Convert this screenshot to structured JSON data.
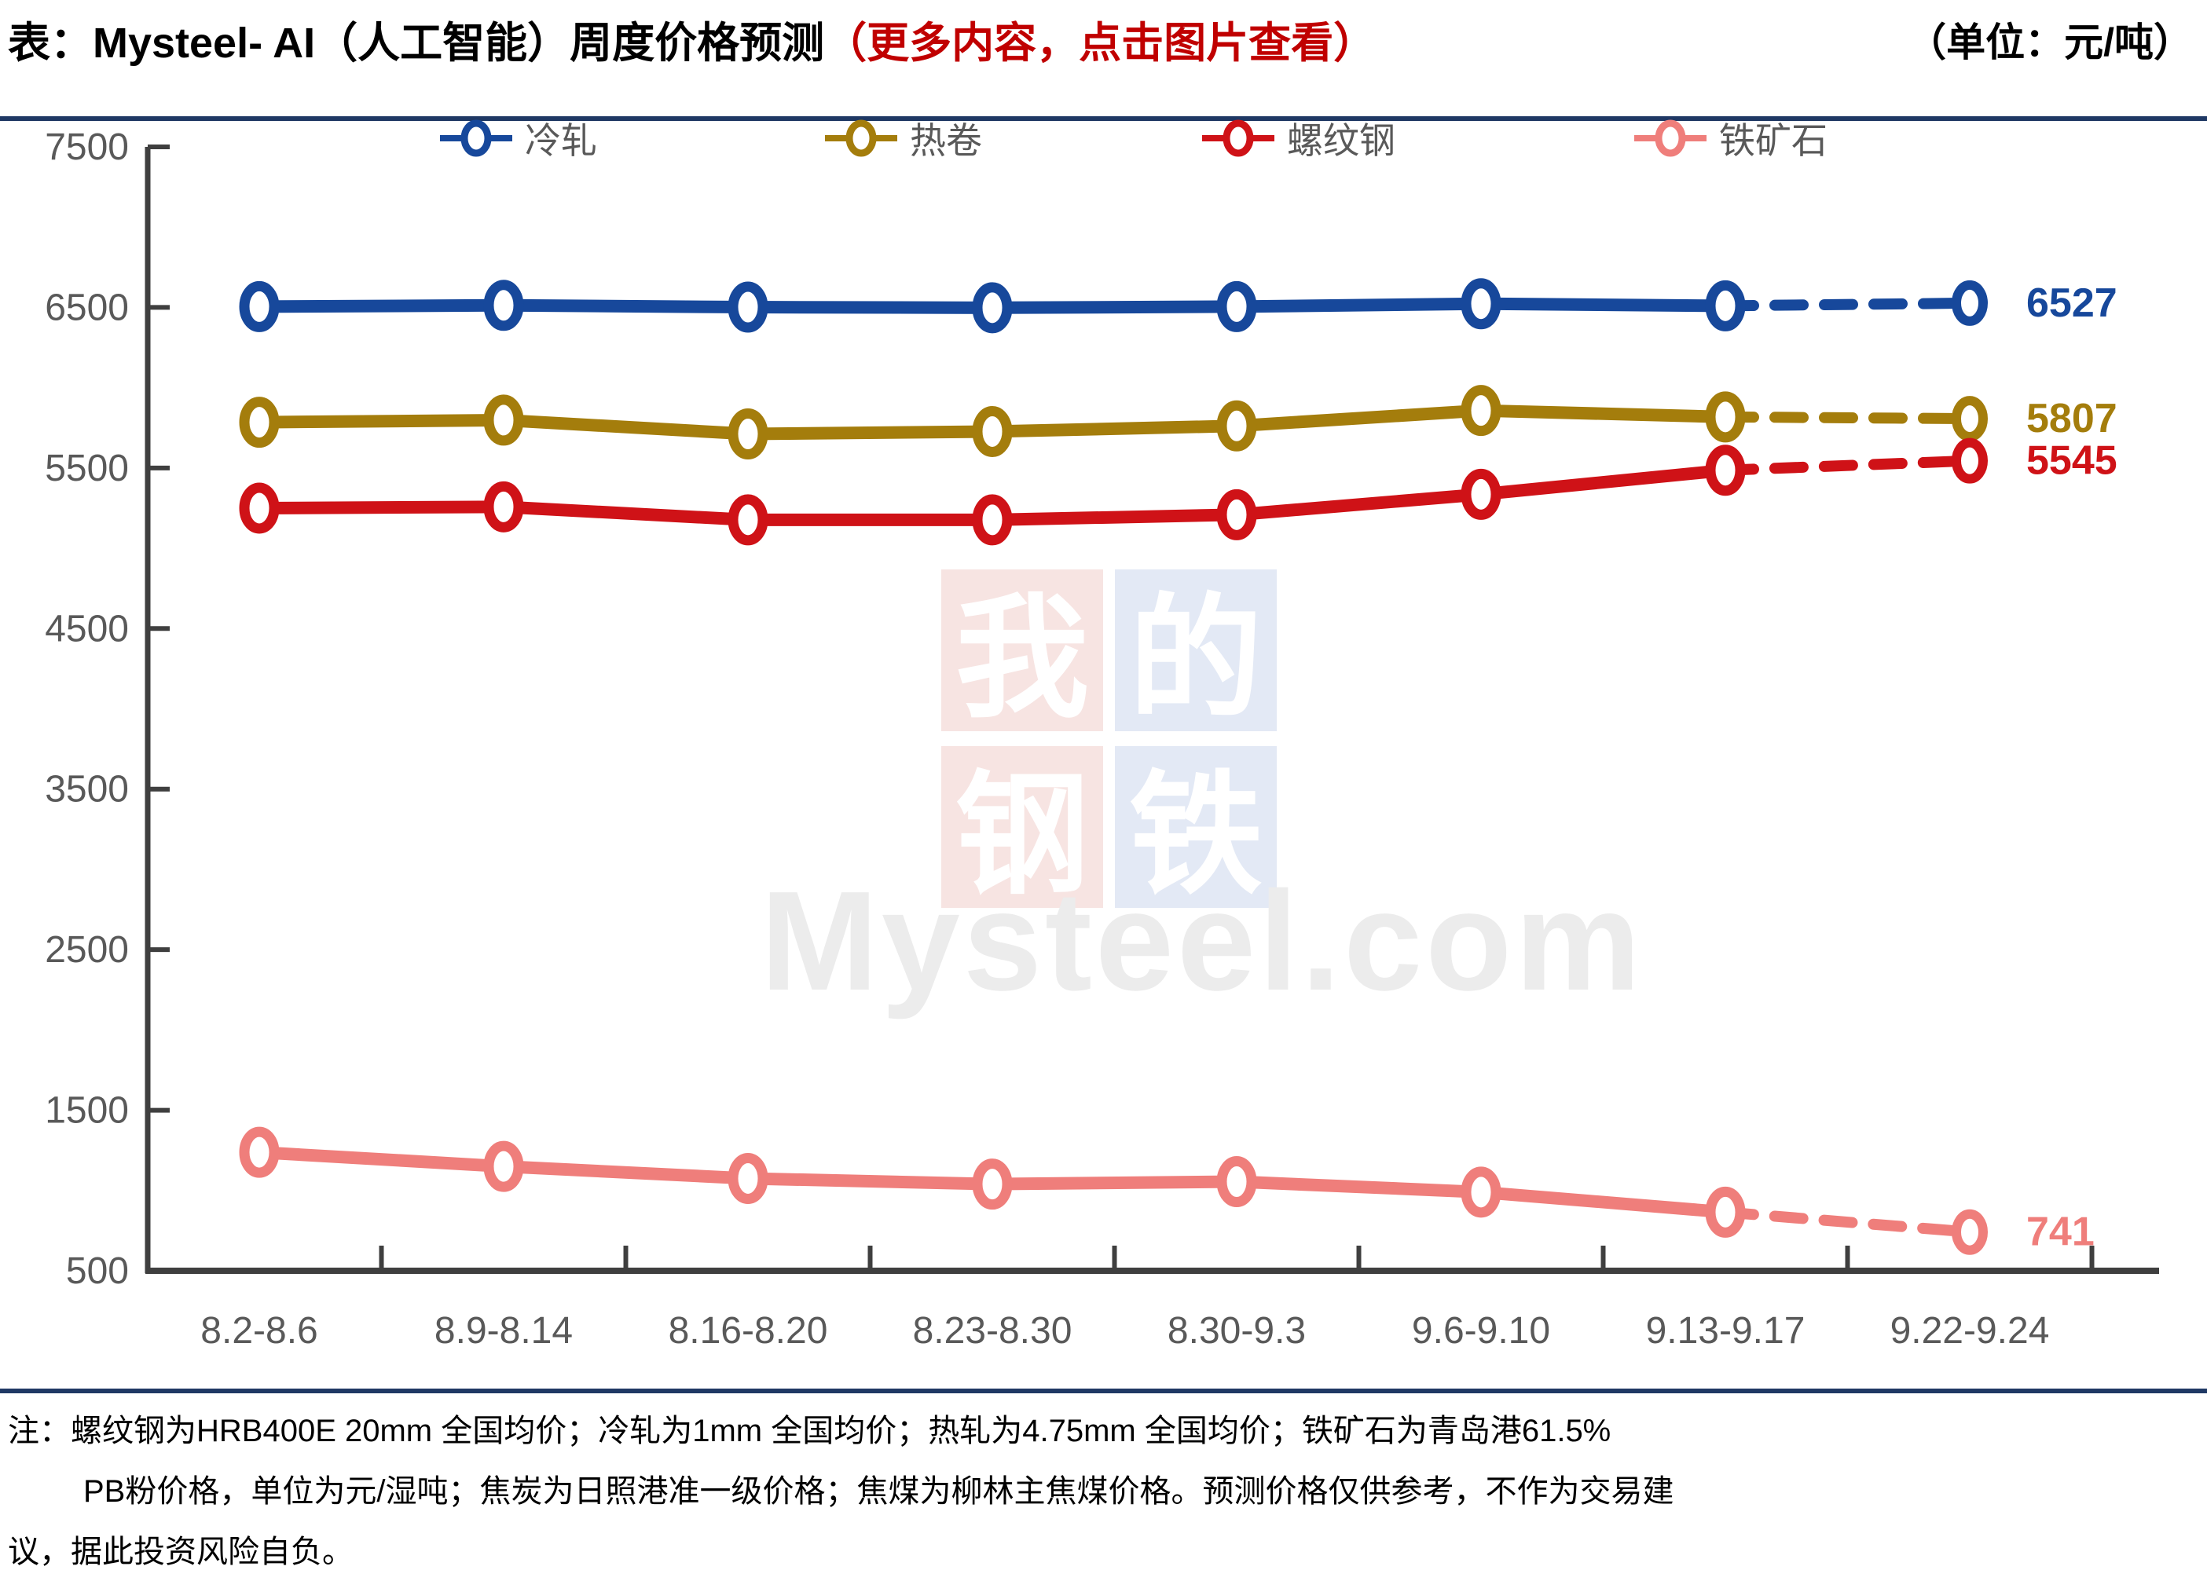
{
  "header": {
    "title_prefix": "表：Mysteel- AI（人工智能）周度价格预测",
    "title_highlight": "（更多内容，点击图片查看）",
    "unit": "（单位：元/吨）"
  },
  "colors": {
    "divider": "#1f3864",
    "title_highlight": "#c00000",
    "axis": "#3f3f3f",
    "tick_text": "#595959",
    "legend_text": "#595959",
    "watermark_brand_text": "#ececec",
    "watermark_red_bg": "#f7e4e2",
    "watermark_blue_bg": "#e3e9f5",
    "watermark_char": "#ffffff"
  },
  "watermark": {
    "chars": [
      "我",
      "的",
      "钢",
      "铁"
    ],
    "brand": "Mysteel.com"
  },
  "note": {
    "line1": "注：螺纹钢为HRB400E 20mm 全国均价；冷轧为1mm 全国均价；热轧为4.75mm 全国均价；铁矿石为青岛港61.5%",
    "line2": "PB粉价格，单位为元/湿吨；焦炭为日照港准一级价格；焦煤为柳林主焦煤价格。预测价格仅供参考，不作为交易建",
    "line3": "议，据此投资风险自负。"
  },
  "chart_data": {
    "type": "line",
    "title": "Mysteel-AI 周度价格预测",
    "unit": "元/吨",
    "categories": [
      "8.2-8.6",
      "8.9-8.14",
      "8.16-8.20",
      "8.23-8.30",
      "8.30-9.3",
      "9.6-9.10",
      "9.13-9.17",
      "9.22-9.24"
    ],
    "ylim": [
      500,
      7500
    ],
    "yticks": [
      500,
      1500,
      2500,
      3500,
      4500,
      5500,
      6500,
      7500
    ],
    "grid": false,
    "legend_position": "top",
    "last_segment_predicted_dashed": true,
    "marker": "open-circle",
    "series": [
      {
        "name": "冷轧",
        "color": "#17489b",
        "values": [
          6505,
          6513,
          6502,
          6498,
          6505,
          6523,
          6510,
          6527
        ],
        "end_label": "6527"
      },
      {
        "name": "热卷",
        "color": "#a47d0c",
        "values": [
          5785,
          5798,
          5712,
          5727,
          5762,
          5858,
          5818,
          5807
        ],
        "end_label": "5807"
      },
      {
        "name": "螺纹钢",
        "color": "#cf1217",
        "values": [
          5250,
          5258,
          5177,
          5177,
          5209,
          5336,
          5486,
          5545
        ],
        "end_label": "5545"
      },
      {
        "name": "铁矿石",
        "color": "#ef7e7b",
        "values": [
          1238,
          1150,
          1075,
          1040,
          1055,
          990,
          865,
          741
        ],
        "end_label": "741"
      }
    ]
  }
}
